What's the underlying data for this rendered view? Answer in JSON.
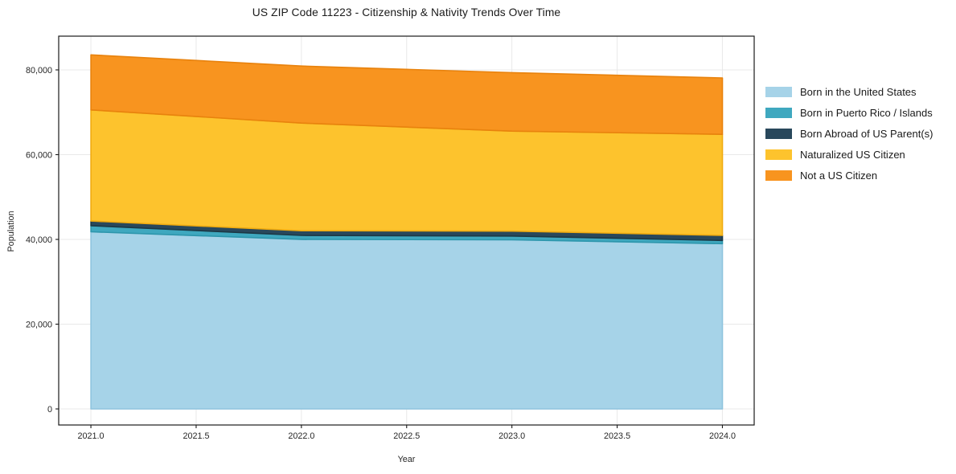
{
  "title": "US ZIP Code 11223 - Citizenship & Nativity Trends Over Time",
  "axes": {
    "xlabel": "Year",
    "ylabel": "Population",
    "x_ticks": [
      {
        "value": 2021.0,
        "label": "2021.0"
      },
      {
        "value": 2021.5,
        "label": "2021.5"
      },
      {
        "value": 2022.0,
        "label": "2022.0"
      },
      {
        "value": 2022.5,
        "label": "2022.5"
      },
      {
        "value": 2023.0,
        "label": "2023.0"
      },
      {
        "value": 2023.5,
        "label": "2023.5"
      },
      {
        "value": 2024.0,
        "label": "2024.0"
      }
    ],
    "y_ticks": [
      {
        "value": 0,
        "label": "0"
      },
      {
        "value": 20000,
        "label": "20,000"
      },
      {
        "value": 40000,
        "label": "40,000"
      },
      {
        "value": 60000,
        "label": "60,000"
      },
      {
        "value": 80000,
        "label": "80,000"
      }
    ]
  },
  "chart_data": {
    "type": "area",
    "stacked": true,
    "title": "US ZIP Code 11223 - Citizenship & Nativity Trends Over Time",
    "xlabel": "Year",
    "ylabel": "Population",
    "x": [
      2021,
      2022,
      2023,
      2024
    ],
    "series": [
      {
        "name": "Born in the United States",
        "color": "#a6d3e8",
        "edge_color": "#8fc4de",
        "values": [
          41800,
          40000,
          39900,
          39000
        ]
      },
      {
        "name": "Born in Puerto Rico / Islands",
        "color": "#3fa8bf",
        "edge_color": "#2d96ac",
        "values": [
          1450,
          950,
          900,
          750
        ]
      },
      {
        "name": "Born Abroad of US Parent(s)",
        "color": "#29485c",
        "edge_color": "#1c3845",
        "values": [
          1100,
          1100,
          1150,
          1200
        ]
      },
      {
        "name": "Naturalized US Citizen",
        "color": "#fdc32d",
        "edge_color": "#f0ab10",
        "values": [
          26200,
          25400,
          23600,
          23850
        ]
      },
      {
        "name": "Not a US Citizen",
        "color": "#f8941f",
        "edge_color": "#e8820d",
        "values": [
          13000,
          13450,
          13800,
          13300
        ]
      }
    ],
    "totals": [
      83550,
      80900,
      79350,
      78100
    ],
    "xlim": [
      2020.847,
      2024.151
    ],
    "ylim": [
      -3790,
      87960
    ],
    "grid": true,
    "legend_position": "right"
  }
}
